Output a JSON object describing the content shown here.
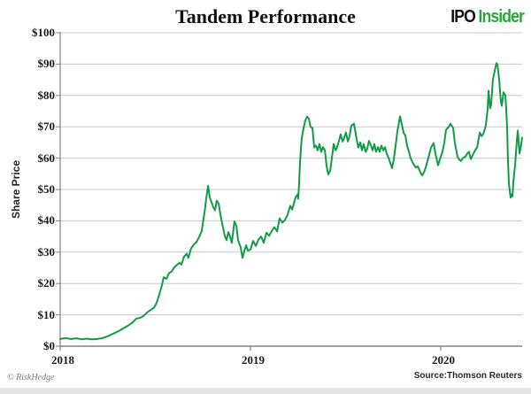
{
  "header": {
    "title": "Tandem Performance",
    "logo": {
      "ipo": "IPO",
      "insider": "Insider",
      "insider_color": "#2ba63e"
    }
  },
  "footer": {
    "copyright": "© RiskHedge",
    "source": "Source:Thomson Reuters"
  },
  "chart_data": {
    "type": "line",
    "title": "Tandem Performance",
    "xlabel": "",
    "ylabel": "Share Price",
    "x_ticks": [
      "2018",
      "2019",
      "2020"
    ],
    "x_tick_years": [
      2018,
      2019,
      2020
    ],
    "y_ticks": [
      "$0",
      "$10",
      "$20",
      "$30",
      "$40",
      "$50",
      "$60",
      "$70",
      "$80",
      "$90",
      "$100"
    ],
    "y_tick_values": [
      0,
      10,
      20,
      30,
      40,
      50,
      60,
      70,
      80,
      90,
      100
    ],
    "xlim": [
      2018.0,
      2020.43
    ],
    "ylim": [
      0,
      100
    ],
    "grid": true,
    "legend": "none",
    "line_color": "#129b46",
    "grid_color": "#c9c9c9",
    "axis_color": "#828282",
    "series": [
      {
        "name": "Tandem share price (USD)",
        "points": [
          [
            2018.0,
            2.3
          ],
          [
            2018.028,
            2.6
          ],
          [
            2018.056,
            2.3
          ],
          [
            2018.084,
            2.5
          ],
          [
            2018.112,
            2.2
          ],
          [
            2018.14,
            2.4
          ],
          [
            2018.167,
            2.2
          ],
          [
            2018.195,
            2.3
          ],
          [
            2018.223,
            2.6
          ],
          [
            2018.251,
            3.2
          ],
          [
            2018.279,
            4.0
          ],
          [
            2018.307,
            4.8
          ],
          [
            2018.335,
            5.8
          ],
          [
            2018.358,
            6.6
          ],
          [
            2018.381,
            7.6
          ],
          [
            2018.4,
            8.8
          ],
          [
            2018.419,
            9.0
          ],
          [
            2018.437,
            9.6
          ],
          [
            2018.456,
            10.7
          ],
          [
            2018.474,
            11.5
          ],
          [
            2018.493,
            12.3
          ],
          [
            2018.507,
            13.8
          ],
          [
            2018.521,
            16.5
          ],
          [
            2018.535,
            19.5
          ],
          [
            2018.544,
            22.0
          ],
          [
            2018.558,
            21.5
          ],
          [
            2018.572,
            23.3
          ],
          [
            2018.586,
            23.8
          ],
          [
            2018.6,
            25.2
          ],
          [
            2018.614,
            26.0
          ],
          [
            2018.628,
            26.6
          ],
          [
            2018.637,
            26.0
          ],
          [
            2018.651,
            28.6
          ],
          [
            2018.665,
            29.5
          ],
          [
            2018.674,
            28.2
          ],
          [
            2018.688,
            31.2
          ],
          [
            2018.702,
            32.4
          ],
          [
            2018.716,
            33.2
          ],
          [
            2018.73,
            34.8
          ],
          [
            2018.744,
            36.8
          ],
          [
            2018.753,
            40.5
          ],
          [
            2018.763,
            44.5
          ],
          [
            2018.767,
            47.0
          ],
          [
            2018.772,
            49.0
          ],
          [
            2018.777,
            51.2
          ],
          [
            2018.786,
            47.5
          ],
          [
            2018.795,
            46.0
          ],
          [
            2018.805,
            44.3
          ],
          [
            2018.814,
            43.4
          ],
          [
            2018.823,
            46.4
          ],
          [
            2018.833,
            45.5
          ],
          [
            2018.842,
            42.0
          ],
          [
            2018.851,
            39.2
          ],
          [
            2018.865,
            35.2
          ],
          [
            2018.874,
            33.8
          ],
          [
            2018.884,
            36.4
          ],
          [
            2018.893,
            35.0
          ],
          [
            2018.902,
            33.0
          ],
          [
            2018.916,
            39.8
          ],
          [
            2018.926,
            38.4
          ],
          [
            2018.935,
            33.8
          ],
          [
            2018.949,
            31.5
          ],
          [
            2018.958,
            28.2
          ],
          [
            2018.967,
            30.1
          ],
          [
            2018.977,
            32.2
          ],
          [
            2018.986,
            30.5
          ],
          [
            2019.0,
            30.8
          ],
          [
            2019.014,
            33.6
          ],
          [
            2019.028,
            32.0
          ],
          [
            2019.042,
            34.0
          ],
          [
            2019.056,
            35.0
          ],
          [
            2019.07,
            33.0
          ],
          [
            2019.084,
            36.2
          ],
          [
            2019.098,
            35.2
          ],
          [
            2019.112,
            36.8
          ],
          [
            2019.126,
            38.0
          ],
          [
            2019.14,
            36.6
          ],
          [
            2019.153,
            40.8
          ],
          [
            2019.167,
            39.4
          ],
          [
            2019.181,
            40.2
          ],
          [
            2019.195,
            41.9
          ],
          [
            2019.209,
            44.8
          ],
          [
            2019.219,
            43.6
          ],
          [
            2019.228,
            45.5
          ],
          [
            2019.237,
            47.5
          ],
          [
            2019.247,
            48.4
          ],
          [
            2019.251,
            47.0
          ],
          [
            2019.256,
            52.0
          ],
          [
            2019.26,
            58.0
          ],
          [
            2019.265,
            63.0
          ],
          [
            2019.27,
            66.5
          ],
          [
            2019.279,
            69.5
          ],
          [
            2019.288,
            72.0
          ],
          [
            2019.298,
            73.3
          ],
          [
            2019.307,
            72.5
          ],
          [
            2019.316,
            70.0
          ],
          [
            2019.326,
            69.6
          ],
          [
            2019.335,
            63.4
          ],
          [
            2019.344,
            64.0
          ],
          [
            2019.353,
            62.5
          ],
          [
            2019.363,
            64.5
          ],
          [
            2019.372,
            62.0
          ],
          [
            2019.381,
            63.5
          ],
          [
            2019.391,
            62.5
          ],
          [
            2019.4,
            57.5
          ],
          [
            2019.409,
            54.8
          ],
          [
            2019.419,
            56.0
          ],
          [
            2019.428,
            60.0
          ],
          [
            2019.437,
            64.5
          ],
          [
            2019.447,
            62.5
          ],
          [
            2019.456,
            63.5
          ],
          [
            2019.465,
            65.5
          ],
          [
            2019.474,
            67.6
          ],
          [
            2019.484,
            65.3
          ],
          [
            2019.493,
            66.5
          ],
          [
            2019.502,
            68.2
          ],
          [
            2019.512,
            65.3
          ],
          [
            2019.521,
            67.0
          ],
          [
            2019.53,
            70.3
          ],
          [
            2019.544,
            71.0
          ],
          [
            2019.558,
            66.0
          ],
          [
            2019.567,
            63.4
          ],
          [
            2019.577,
            65.0
          ],
          [
            2019.586,
            62.5
          ],
          [
            2019.595,
            64.5
          ],
          [
            2019.605,
            62.0
          ],
          [
            2019.614,
            63.0
          ],
          [
            2019.623,
            65.5
          ],
          [
            2019.633,
            64.0
          ],
          [
            2019.642,
            62.5
          ],
          [
            2019.651,
            64.5
          ],
          [
            2019.66,
            62.0
          ],
          [
            2019.67,
            63.5
          ],
          [
            2019.679,
            62.0
          ],
          [
            2019.688,
            64.0
          ],
          [
            2019.698,
            62.5
          ],
          [
            2019.707,
            63.5
          ],
          [
            2019.716,
            61.5
          ],
          [
            2019.726,
            60.0
          ],
          [
            2019.735,
            58.5
          ],
          [
            2019.744,
            56.8
          ],
          [
            2019.753,
            59.5
          ],
          [
            2019.763,
            64.0
          ],
          [
            2019.772,
            68.5
          ],
          [
            2019.781,
            71.5
          ],
          [
            2019.786,
            73.3
          ],
          [
            2019.795,
            71.0
          ],
          [
            2019.805,
            68.0
          ],
          [
            2019.814,
            67.3
          ],
          [
            2019.823,
            64.0
          ],
          [
            2019.833,
            62.0
          ],
          [
            2019.842,
            60.0
          ],
          [
            2019.856,
            58.2
          ],
          [
            2019.87,
            57.0
          ],
          [
            2019.879,
            57.4
          ],
          [
            2019.893,
            55.5
          ],
          [
            2019.902,
            54.5
          ],
          [
            2019.912,
            55.5
          ],
          [
            2019.921,
            57.0
          ],
          [
            2019.935,
            60.0
          ],
          [
            2019.949,
            63.4
          ],
          [
            2019.963,
            64.8
          ],
          [
            2019.972,
            61.5
          ],
          [
            2019.986,
            57.7
          ],
          [
            2019.995,
            59.5
          ],
          [
            2020.009,
            62.0
          ],
          [
            2020.019,
            65.0
          ],
          [
            2020.028,
            69.0
          ],
          [
            2020.042,
            70.0
          ],
          [
            2020.051,
            71.0
          ],
          [
            2020.065,
            69.6
          ],
          [
            2020.074,
            65.0
          ],
          [
            2020.088,
            60.5
          ],
          [
            2020.098,
            59.5
          ],
          [
            2020.107,
            59.1
          ],
          [
            2020.116,
            60.0
          ],
          [
            2020.13,
            60.5
          ],
          [
            2020.14,
            61.5
          ],
          [
            2020.149,
            62.0
          ],
          [
            2020.158,
            59.7
          ],
          [
            2020.172,
            61.5
          ],
          [
            2020.181,
            62.5
          ],
          [
            2020.191,
            63.4
          ],
          [
            2020.205,
            68.2
          ],
          [
            2020.214,
            67.0
          ],
          [
            2020.223,
            67.6
          ],
          [
            2020.233,
            69.5
          ],
          [
            2020.237,
            70.5
          ],
          [
            2020.247,
            75.9
          ],
          [
            2020.251,
            81.5
          ],
          [
            2020.26,
            75.9
          ],
          [
            2020.265,
            77.3
          ],
          [
            2020.274,
            85.0
          ],
          [
            2020.284,
            88.0
          ],
          [
            2020.293,
            90.3
          ],
          [
            2020.298,
            89.8
          ],
          [
            2020.307,
            85.2
          ],
          [
            2020.316,
            78.1
          ],
          [
            2020.321,
            76.7
          ],
          [
            2020.33,
            81.0
          ],
          [
            2020.34,
            80.0
          ],
          [
            2020.349,
            70.0
          ],
          [
            2020.353,
            60.0
          ],
          [
            2020.358,
            52.0
          ],
          [
            2020.367,
            47.4
          ],
          [
            2020.372,
            48.5
          ],
          [
            2020.377,
            47.8
          ],
          [
            2020.381,
            52.0
          ],
          [
            2020.391,
            58.0
          ],
          [
            2020.4,
            65.5
          ],
          [
            2020.405,
            68.8
          ],
          [
            2020.414,
            61.5
          ],
          [
            2020.419,
            63.0
          ],
          [
            2020.428,
            66.5
          ]
        ]
      }
    ]
  }
}
